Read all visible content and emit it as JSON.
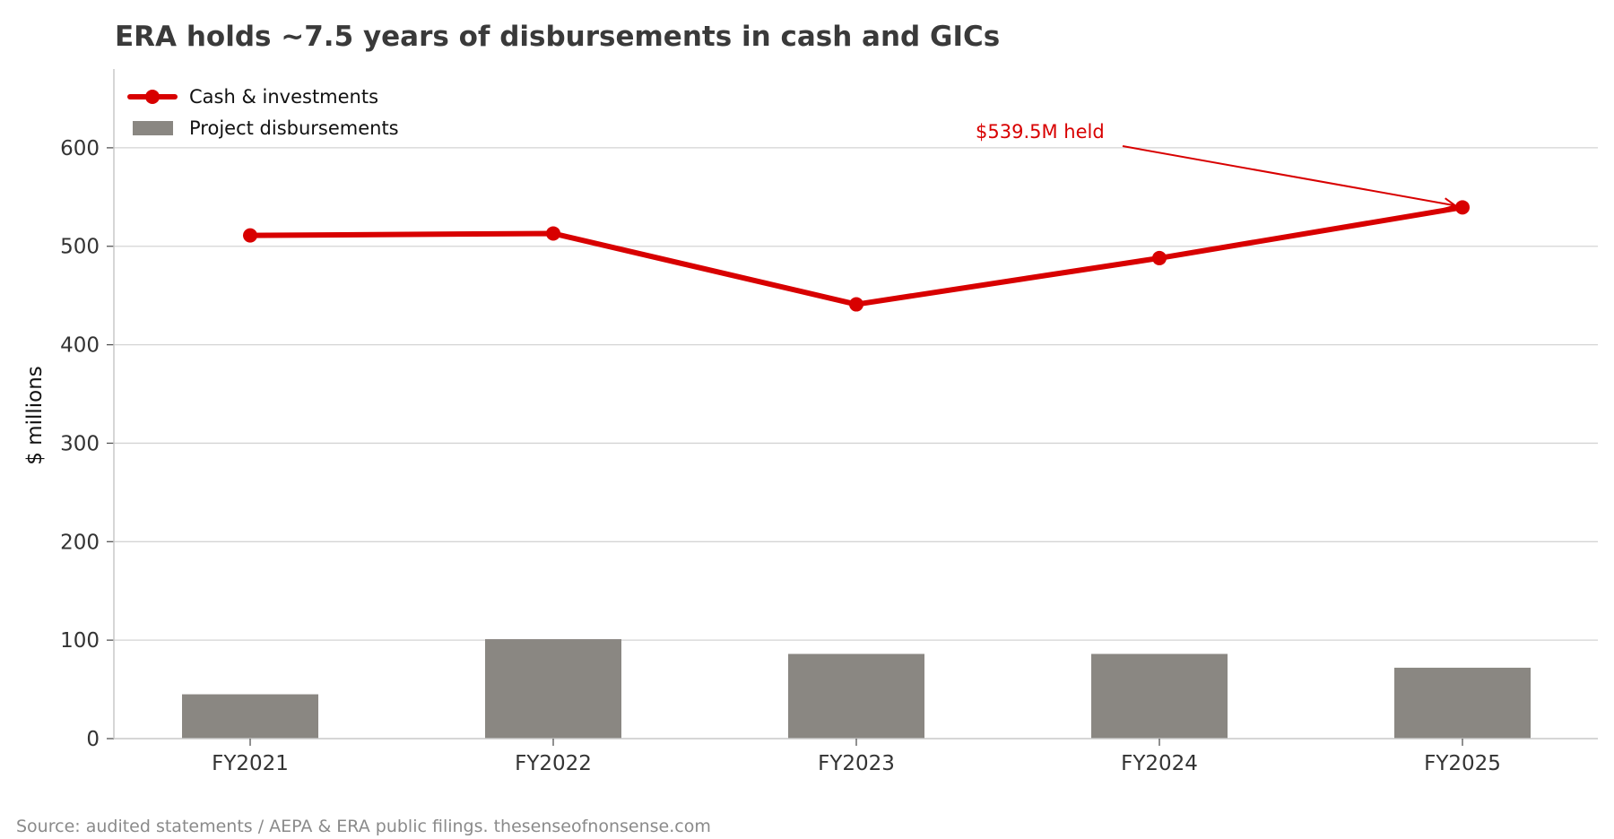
{
  "chart_data": {
    "type": "bar",
    "title": "ERA holds ~7.5 years of disbursements in cash and GICs",
    "xlabel": "",
    "ylabel": "$ millions",
    "categories": [
      "FY2021",
      "FY2022",
      "FY2023",
      "FY2024",
      "FY2025"
    ],
    "series": [
      {
        "name": "Cash & investments",
        "kind": "line",
        "color": "#d80000",
        "values": [
          511,
          513,
          441,
          488,
          539.5
        ]
      },
      {
        "name": "Project disbursements",
        "kind": "bar",
        "color": "#8a8782",
        "values": [
          45,
          101,
          86,
          86,
          72
        ]
      }
    ],
    "ylim": [
      0,
      680
    ],
    "yticks": [
      0,
      100,
      200,
      300,
      400,
      500,
      600
    ],
    "grid": "horizontal",
    "legend_position": "top-left",
    "annotation": {
      "text": "$539.5M held",
      "target_category": "FY2025",
      "target_value": 539.5,
      "color": "#d80000"
    },
    "source": "Source: audited statements / AEPA & ERA public filings. thesenseofnonsense.com"
  }
}
